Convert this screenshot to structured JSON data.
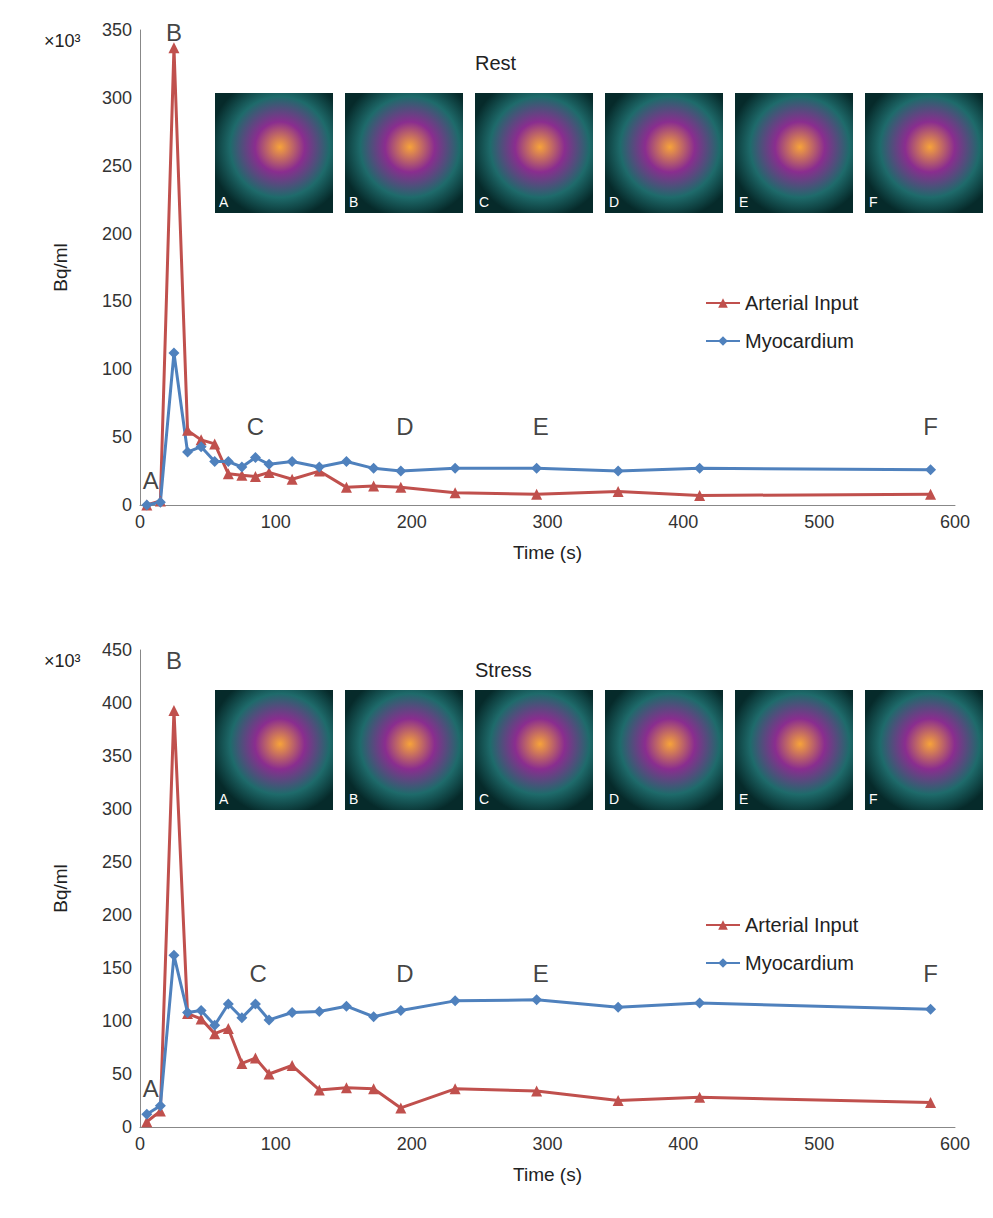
{
  "chart_data": [
    {
      "type": "line",
      "title": "Rest",
      "xlabel": "Time (s)",
      "ylabel": "Bq/ml",
      "ylabel_multiplier": "×10³",
      "x": [
        5,
        15,
        25,
        35,
        45,
        55,
        65,
        75,
        85,
        95,
        112,
        132,
        152,
        172,
        192,
        232,
        292,
        352,
        412,
        582
      ],
      "series": [
        {
          "name": "Arterial Input",
          "color": "#c0504d",
          "marker": "triangle",
          "line_style": "solid",
          "values": [
            0,
            3,
            337,
            55,
            48,
            45,
            23,
            22,
            21,
            24,
            19,
            25,
            13,
            14,
            13,
            9,
            8,
            10,
            7,
            8
          ]
        },
        {
          "name": "Myocardium",
          "color": "#4f81bd",
          "marker": "diamond",
          "line_style": "solid",
          "values": [
            0,
            2,
            112,
            39,
            43,
            32,
            32,
            28,
            35,
            30,
            32,
            28,
            32,
            27,
            25,
            27,
            27,
            25,
            27,
            26
          ]
        }
      ],
      "xlim": [
        0,
        600
      ],
      "xticks": [
        0,
        100,
        200,
        300,
        400,
        500,
        600
      ],
      "ylim": [
        0,
        350
      ],
      "yticks": [
        0,
        50,
        100,
        150,
        200,
        250,
        300,
        350
      ],
      "grid": false,
      "legend": "right",
      "annotations": [
        {
          "text": "A",
          "x": 8,
          "y": 18
        },
        {
          "text": "B",
          "x": 25,
          "y": 348
        },
        {
          "text": "C",
          "x": 85,
          "y": 58
        },
        {
          "text": "D",
          "x": 195,
          "y": 58
        },
        {
          "text": "E",
          "x": 295,
          "y": 58
        },
        {
          "text": "F",
          "x": 582,
          "y": 58
        }
      ],
      "thumbnail_labels": [
        "A",
        "B",
        "C",
        "D",
        "E",
        "F"
      ]
    },
    {
      "type": "line",
      "title": "Stress",
      "xlabel": "Time (s)",
      "ylabel": "Bq/ml",
      "ylabel_multiplier": "×10³",
      "x": [
        5,
        15,
        25,
        35,
        45,
        55,
        65,
        75,
        85,
        95,
        112,
        132,
        152,
        172,
        192,
        232,
        292,
        352,
        412,
        582
      ],
      "series": [
        {
          "name": "Arterial Input",
          "color": "#c0504d",
          "marker": "triangle",
          "line_style": "solid",
          "values": [
            5,
            15,
            393,
            107,
            102,
            88,
            93,
            60,
            65,
            50,
            58,
            35,
            37,
            36,
            18,
            36,
            34,
            25,
            28,
            23
          ]
        },
        {
          "name": "Myocardium",
          "color": "#4f81bd",
          "marker": "diamond",
          "line_style": "solid",
          "values": [
            12,
            20,
            162,
            108,
            110,
            96,
            116,
            103,
            116,
            101,
            108,
            109,
            114,
            104,
            110,
            119,
            120,
            113,
            117,
            111
          ]
        }
      ],
      "xlim": [
        0,
        600
      ],
      "xticks": [
        0,
        100,
        200,
        300,
        400,
        500,
        600
      ],
      "ylim": [
        0,
        450
      ],
      "yticks": [
        0,
        50,
        100,
        150,
        200,
        250,
        300,
        350,
        400,
        450
      ],
      "grid": false,
      "legend": "right",
      "annotations": [
        {
          "text": "A",
          "x": 8,
          "y": 36
        },
        {
          "text": "B",
          "x": 25,
          "y": 440
        },
        {
          "text": "C",
          "x": 87,
          "y": 145
        },
        {
          "text": "D",
          "x": 195,
          "y": 145
        },
        {
          "text": "E",
          "x": 295,
          "y": 145
        },
        {
          "text": "F",
          "x": 582,
          "y": 145
        }
      ],
      "thumbnail_labels": [
        "A",
        "B",
        "C",
        "D",
        "E",
        "F"
      ]
    }
  ]
}
